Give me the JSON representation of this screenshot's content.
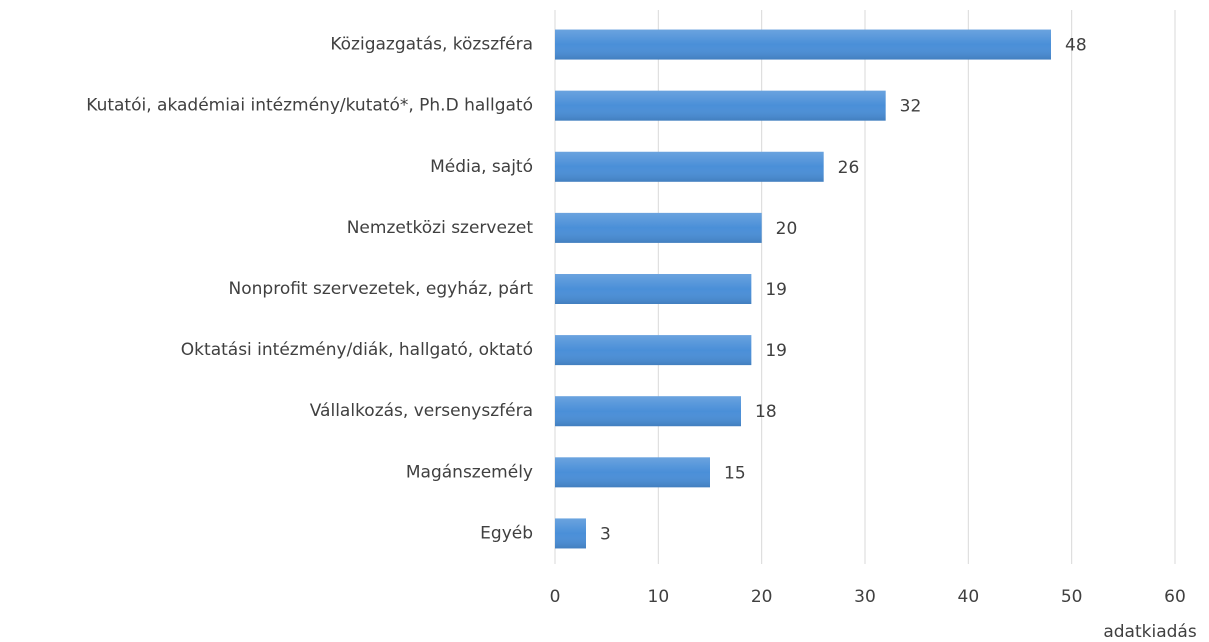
{
  "chart_data": {
    "type": "barh",
    "categories": [
      "Közigazgatás, közszféra",
      "Kutatói, akadémiai intézmény/kutató*, Ph.D hallgató",
      "Média, sajtó",
      "Nemzetközi szervezet",
      "Nonprofit szervezetek, egyház, párt",
      "Oktatási intézmény/diák, hallgató, oktató",
      "Vállalkozás, versenyszféra",
      "Magánszemély",
      "Egyéb"
    ],
    "values": [
      48,
      32,
      26,
      20,
      19,
      19,
      18,
      15,
      3
    ],
    "color": "#4a8fd8",
    "xlim": [
      0,
      60
    ],
    "xticks": [
      0,
      10,
      20,
      30,
      40,
      50,
      60
    ],
    "xlabel": "adatkiadás",
    "grid": true
  }
}
